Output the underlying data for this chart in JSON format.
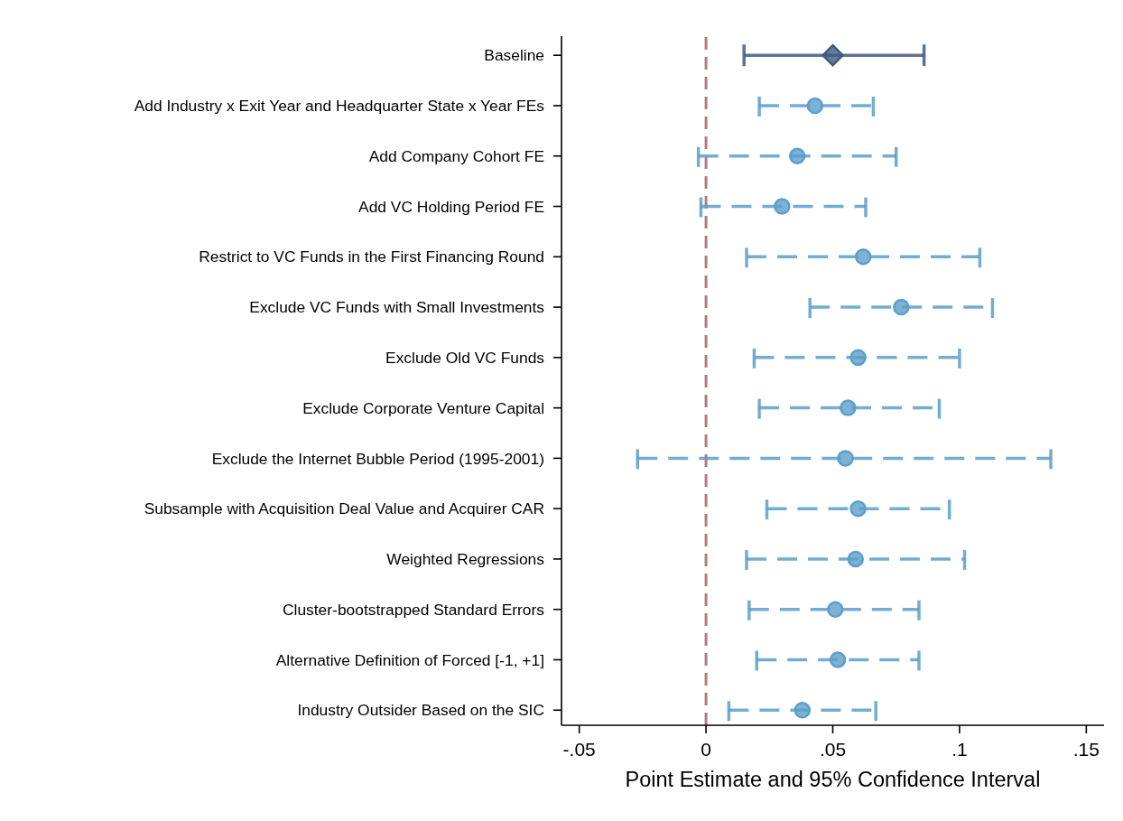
{
  "chart_data": {
    "type": "scatter",
    "orientation": "horizontal",
    "categories": [
      "Baseline",
      "Add Industry x Exit Year and Headquarter State x Year FEs",
      "Add Company Cohort FE",
      "Add VC Holding Period FE",
      "Restrict to VC Funds in the First Financing Round",
      "Exclude VC Funds with Small Investments",
      "Exclude Old VC Funds",
      "Exclude Corporate Venture Capital",
      "Exclude the Internet Bubble Period (1995-2001)",
      "Subsample with Acquisition Deal Value and Acquirer CAR",
      "Weighted Regressions",
      "Cluster-bootstrapped Standard Errors",
      "Alternative Definition of Forced [-1, +1]",
      "Industry Outsider Based on the SIC"
    ],
    "xlabel": "Point Estimate and 95% Confidence Interval",
    "xlim": [
      -0.057,
      0.157
    ],
    "xticks": [
      {
        "value": -0.05,
        "label": "-.05"
      },
      0,
      {
        "value": 0.05,
        "label": ".05"
      },
      {
        "value": 0.1,
        "label": ".1"
      },
      {
        "value": 0.15,
        "label": ".15"
      }
    ],
    "series": [
      {
        "color": "#3e5a82",
        "marker": "diamond",
        "line_style": "solid",
        "values": [
          0.05,
          null,
          null,
          null,
          null,
          null,
          null,
          null,
          null,
          null,
          null,
          null,
          null,
          null
        ],
        "errors": [
          [
            0.015,
            0.086
          ],
          null,
          null,
          null,
          null,
          null,
          null,
          null,
          null,
          null,
          null,
          null,
          null,
          null
        ]
      },
      {
        "color": "#5b9fca",
        "marker": "circle",
        "line_style": "dashed",
        "values": [
          null,
          0.043,
          0.036,
          0.03,
          0.062,
          0.077,
          0.06,
          0.056,
          0.055,
          0.06,
          0.059,
          0.051,
          0.052,
          0.038
        ],
        "errors": [
          null,
          [
            0.021,
            0.066
          ],
          [
            -0.003,
            0.075
          ],
          [
            -0.002,
            0.063
          ],
          [
            0.016,
            0.108
          ],
          [
            0.041,
            0.113
          ],
          [
            0.019,
            0.1
          ],
          [
            0.021,
            0.092
          ],
          [
            -0.027,
            0.136
          ],
          [
            0.024,
            0.096
          ],
          [
            0.016,
            0.102
          ],
          [
            0.017,
            0.084
          ],
          [
            0.02,
            0.084
          ],
          [
            0.009,
            0.067
          ]
        ]
      }
    ],
    "ref_lines": [
      {
        "axis": "x",
        "value": 0,
        "color": "#a86e6e",
        "line_style": "dashed"
      }
    ]
  }
}
